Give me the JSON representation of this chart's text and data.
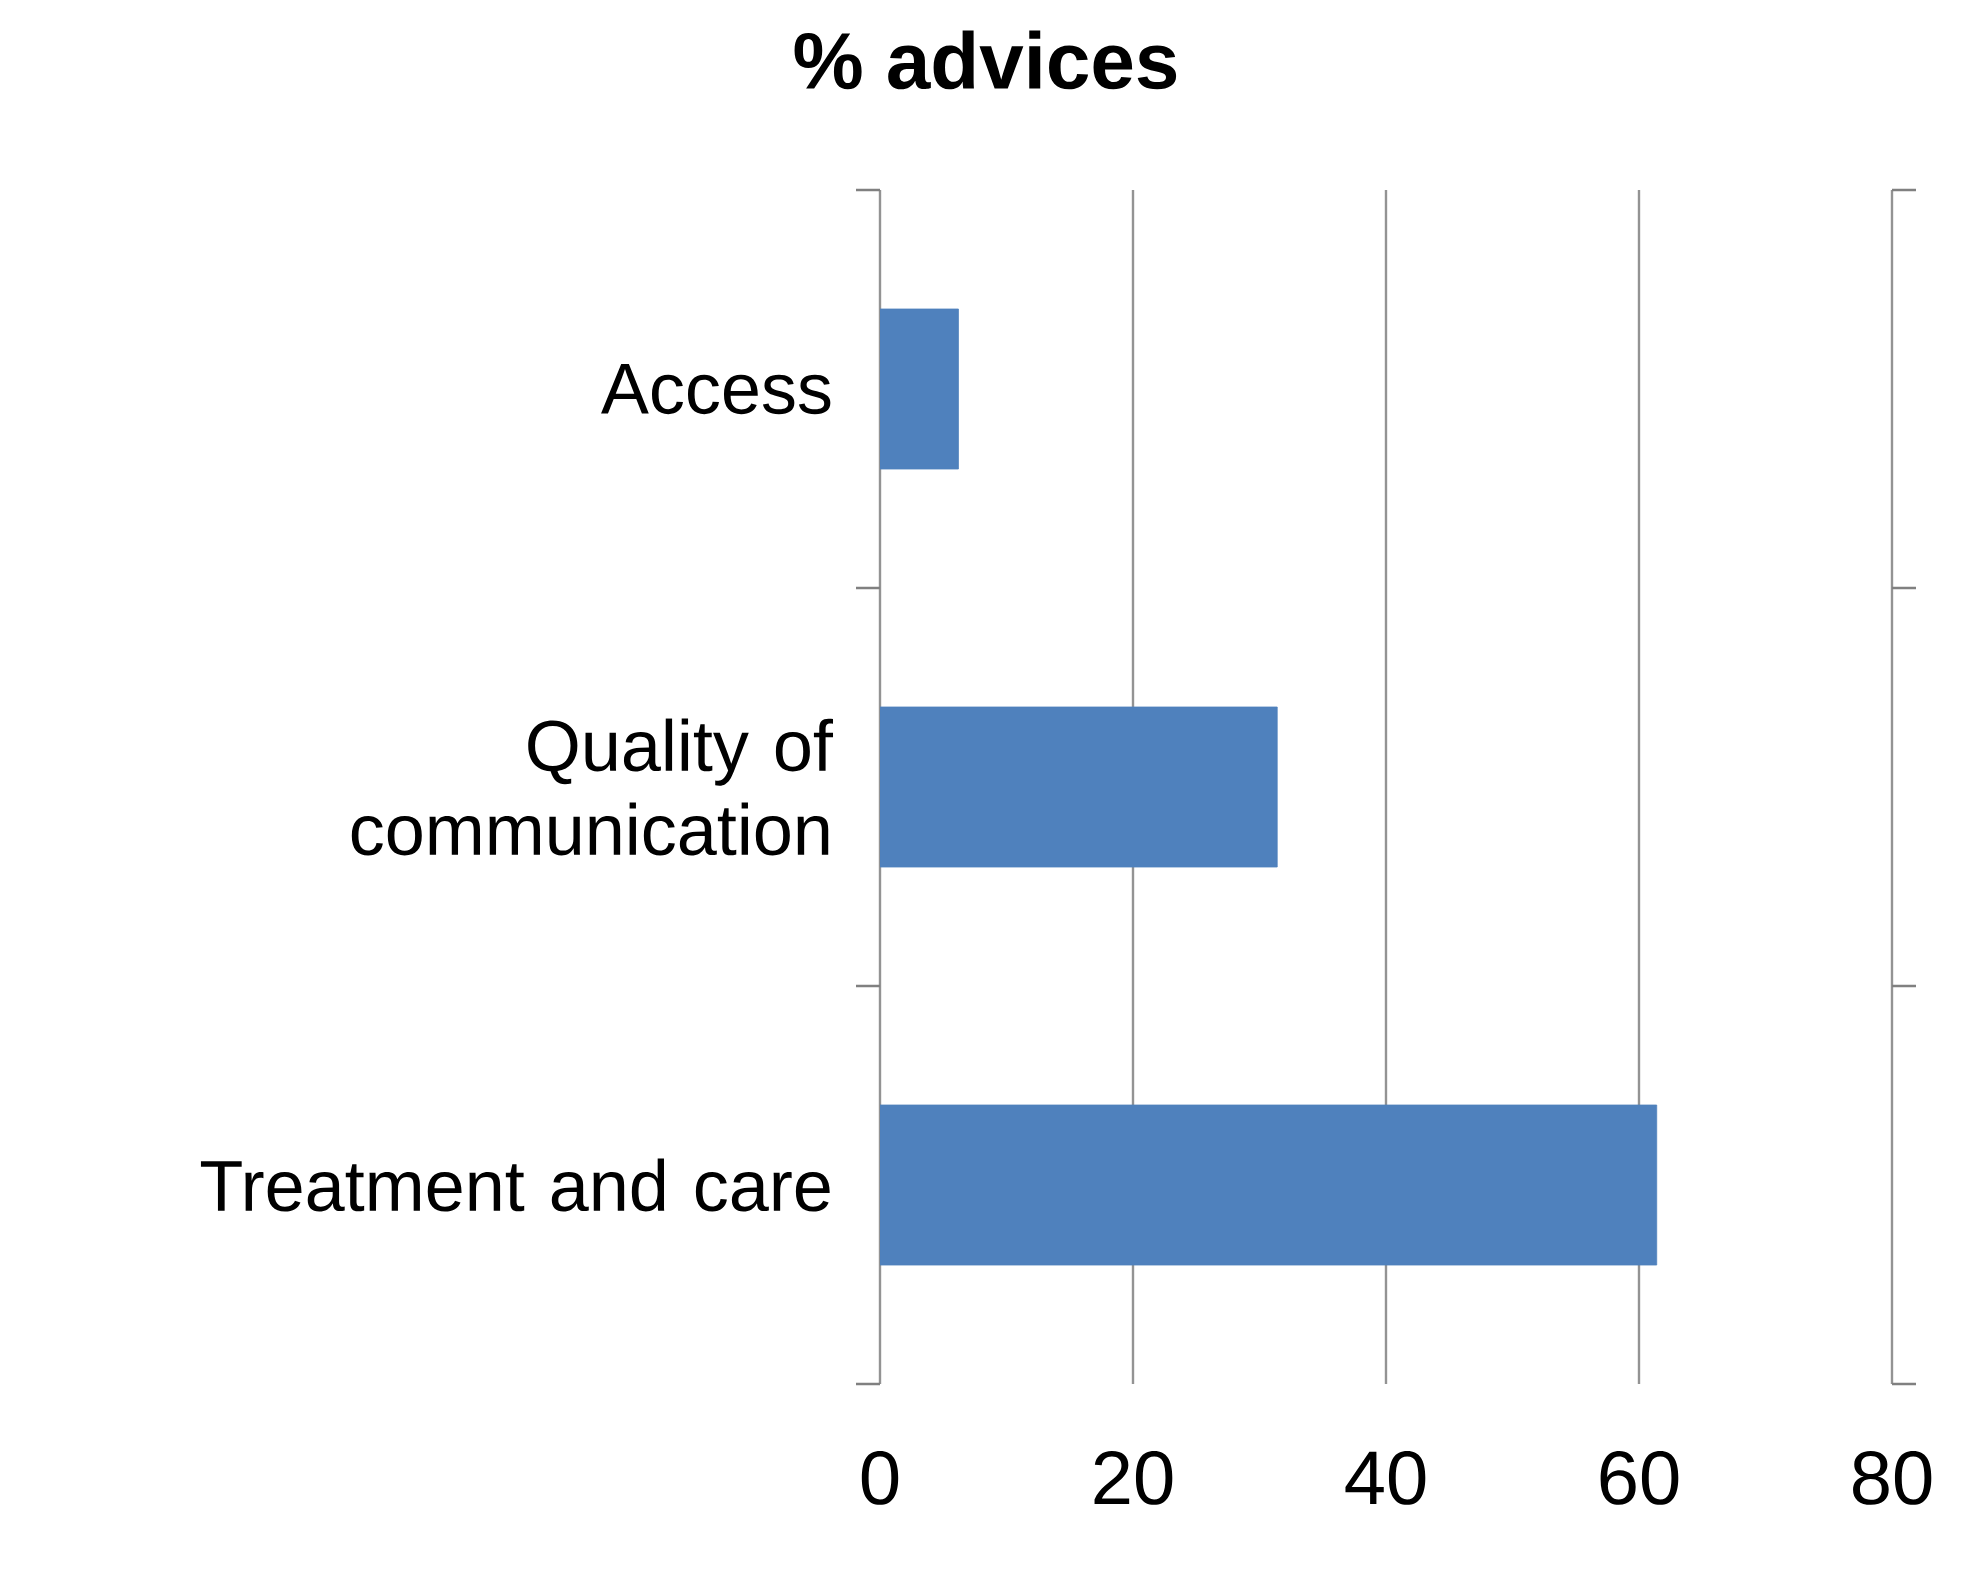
{
  "chart_data": {
    "type": "bar",
    "orientation": "horizontal",
    "title": "% advices",
    "categories": [
      "Access",
      "Quality of communication",
      "Treatment and care"
    ],
    "values": [
      6.2,
      31.4,
      61.4
    ],
    "color": "#4f81bd",
    "xlim": [
      0,
      80
    ],
    "xticks": [
      0,
      20,
      40,
      60,
      80
    ],
    "grid": "x"
  }
}
